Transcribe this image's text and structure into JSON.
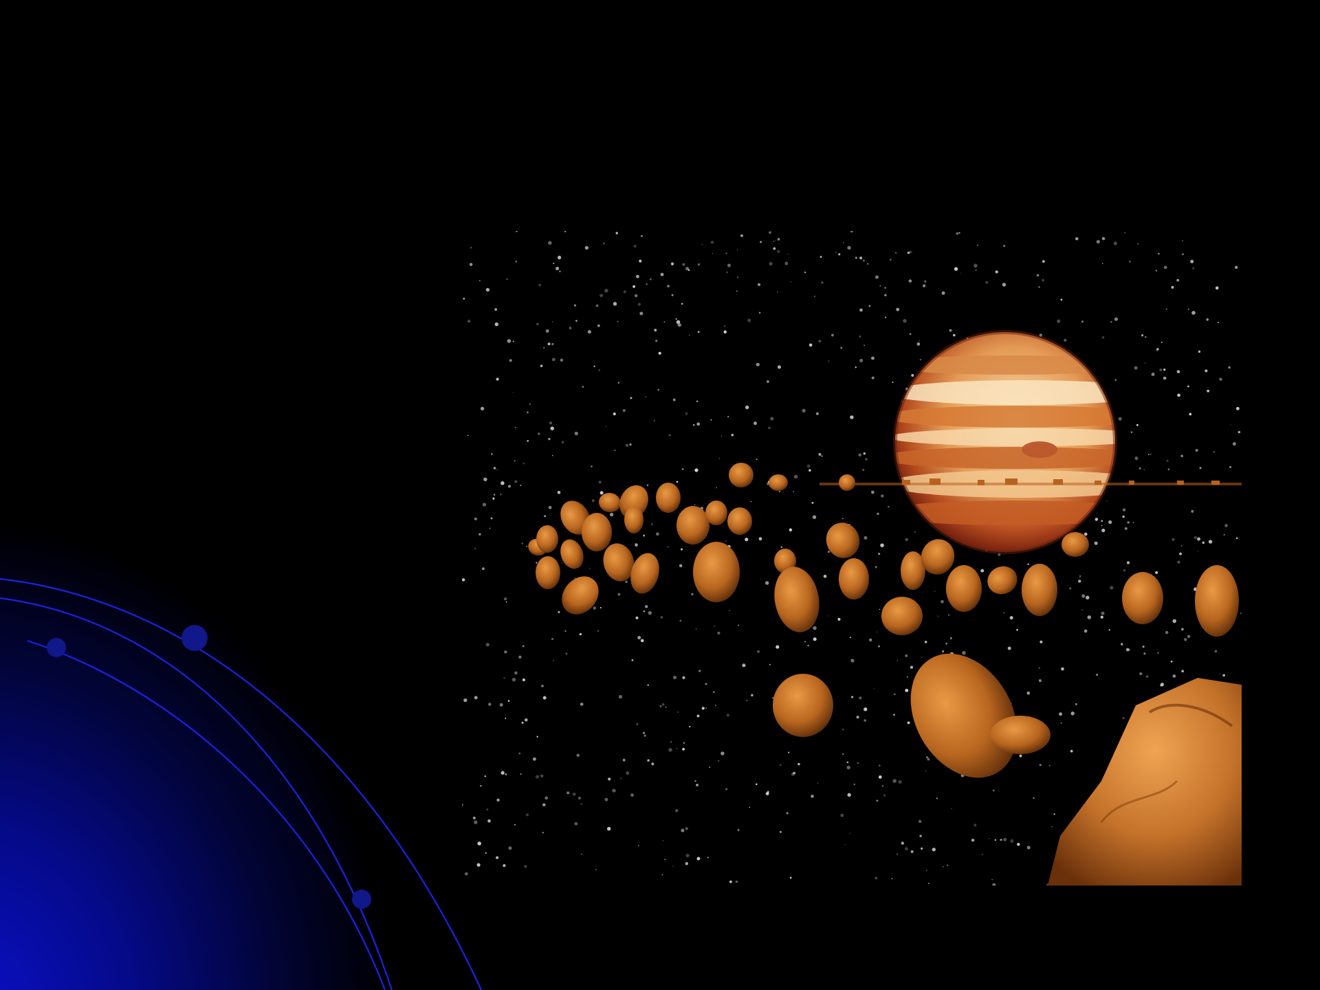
{
  "slide": {
    "background_color": "#000000",
    "accent_color": "#0a10c8",
    "orbit_line_color": "#1a22e6",
    "orbit_node_color": "#10188a"
  },
  "illustration": {
    "subject": "asteroid-belt-with-jupiter",
    "planet_colors": [
      "#f6c38a",
      "#d9782e",
      "#a8451d",
      "#fbe0b5"
    ],
    "asteroid_color": "#c5772a",
    "star_color": "#d8d8d8"
  }
}
